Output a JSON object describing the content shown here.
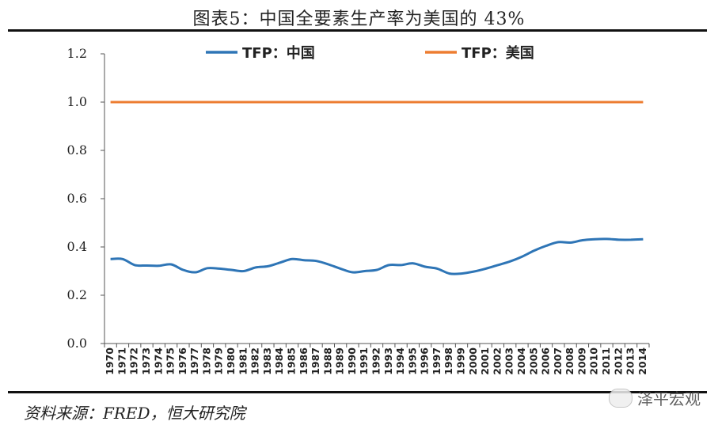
{
  "header": {
    "title": "图表5：中国全要素生产率为美国的 43%"
  },
  "footer": {
    "source": "资料来源：FRED，恒大研究院",
    "watermark": "泽平宏观"
  },
  "chart_data": {
    "type": "line",
    "x": [
      1970,
      1971,
      1972,
      1973,
      1974,
      1975,
      1976,
      1977,
      1978,
      1979,
      1980,
      1981,
      1982,
      1983,
      1984,
      1985,
      1986,
      1987,
      1988,
      1989,
      1990,
      1991,
      1992,
      1993,
      1994,
      1995,
      1996,
      1997,
      1998,
      1999,
      2000,
      2001,
      2002,
      2003,
      2004,
      2005,
      2006,
      2007,
      2008,
      2009,
      2010,
      2011,
      2012,
      2013,
      2014
    ],
    "series": [
      {
        "name": "TFP：中国",
        "color": "#2e75b6",
        "values": [
          0.35,
          0.35,
          0.325,
          0.323,
          0.322,
          0.328,
          0.305,
          0.295,
          0.312,
          0.31,
          0.305,
          0.3,
          0.315,
          0.32,
          0.335,
          0.35,
          0.345,
          0.342,
          0.328,
          0.31,
          0.295,
          0.3,
          0.305,
          0.325,
          0.325,
          0.332,
          0.318,
          0.31,
          0.29,
          0.29,
          0.298,
          0.31,
          0.325,
          0.34,
          0.36,
          0.385,
          0.405,
          0.42,
          0.418,
          0.428,
          0.432,
          0.433,
          0.43,
          0.43,
          0.432
        ]
      },
      {
        "name": "TFP：美国",
        "color": "#ed7d31",
        "values": [
          1,
          1,
          1,
          1,
          1,
          1,
          1,
          1,
          1,
          1,
          1,
          1,
          1,
          1,
          1,
          1,
          1,
          1,
          1,
          1,
          1,
          1,
          1,
          1,
          1,
          1,
          1,
          1,
          1,
          1,
          1,
          1,
          1,
          1,
          1,
          1,
          1,
          1,
          1,
          1,
          1,
          1,
          1,
          1,
          1
        ]
      }
    ],
    "ylim": [
      0,
      1.2
    ],
    "yticks": [
      "0.0",
      "0.2",
      "0.4",
      "0.6",
      "0.8",
      "1.0",
      "1.2"
    ],
    "legend_position": "top",
    "grid": false
  }
}
